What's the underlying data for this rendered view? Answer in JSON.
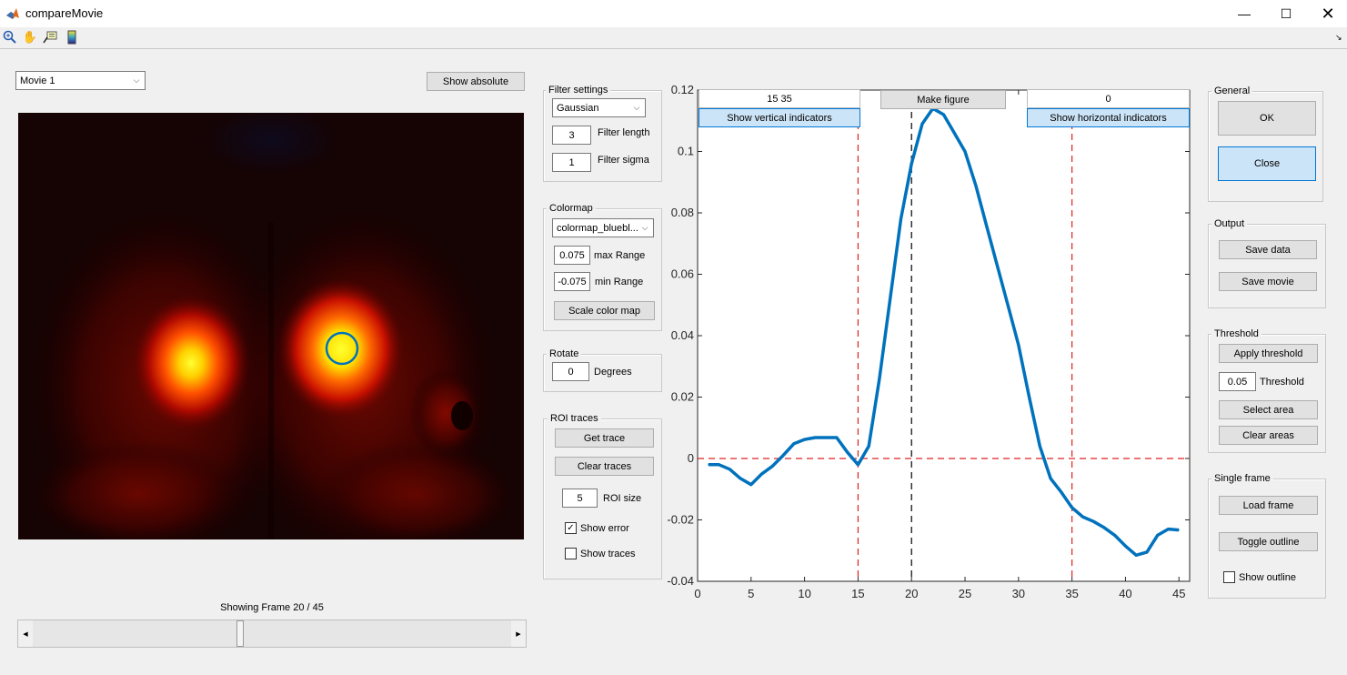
{
  "window": {
    "title": "compareMovie",
    "minimize_icon": "minimize-icon",
    "maximize_icon": "maximize-icon",
    "close_icon": "close-icon"
  },
  "toolbar": {
    "icons": [
      "zoom-in-icon",
      "pan-hand-icon",
      "data-cursor-icon",
      "colorbar-icon"
    ]
  },
  "movie": {
    "selected": "Movie 1",
    "show_absolute_label": "Show absolute",
    "frame_text": "Showing Frame 20 / 45",
    "slider": {
      "current": 20,
      "total": 45
    }
  },
  "filter": {
    "title": "Filter settings",
    "type": "Gaussian",
    "length_value": "3",
    "length_label": "Filter length",
    "sigma_value": "1",
    "sigma_label": "Filter sigma"
  },
  "colormap": {
    "title": "Colormap",
    "selected": "colormap_bluebl...",
    "max_value": "0.075",
    "max_label": "max Range",
    "min_value": "-0.075",
    "min_label": "min Range",
    "scale_label": "Scale color map"
  },
  "rotate": {
    "title": "Rotate",
    "value": "0",
    "label": "Degrees"
  },
  "roi": {
    "title": "ROI traces",
    "get_trace_label": "Get trace",
    "clear_traces_label": "Clear traces",
    "size_value": "5",
    "size_label": "ROI size",
    "show_error_label": "Show error",
    "show_error_checked": true,
    "show_traces_label": "Show traces",
    "show_traces_checked": false
  },
  "plot_controls": {
    "vertical_value": "15 35",
    "vertical_label": "Show vertical indicators",
    "make_figure_label": "Make figure",
    "horizontal_value": "0",
    "horizontal_label": "Show horizontal indicators"
  },
  "general": {
    "title": "General",
    "ok_label": "OK",
    "close_label": "Close"
  },
  "output": {
    "title": "Output",
    "save_data_label": "Save data",
    "save_movie_label": "Save movie"
  },
  "threshold": {
    "title": "Threshold",
    "apply_label": "Apply threshold",
    "value": "0.05",
    "label": "Threshold",
    "select_area_label": "Select area",
    "clear_areas_label": "Clear areas"
  },
  "single_frame": {
    "title": "Single frame",
    "load_label": "Load frame",
    "toggle_label": "Toggle outline",
    "show_outline_label": "Show outline",
    "show_outline_checked": false
  },
  "chart_data": {
    "type": "line",
    "xlim": [
      0,
      46
    ],
    "ylim": [
      -0.04,
      0.12
    ],
    "xticks": [
      0,
      5,
      10,
      15,
      20,
      25,
      30,
      35,
      40,
      45
    ],
    "yticks": [
      -0.04,
      -0.02,
      0,
      0.02,
      0.04,
      0.06,
      0.08,
      0.1,
      0.12
    ],
    "xticklabels": [
      "0",
      "5",
      "10",
      "15",
      "20",
      "25",
      "30",
      "35",
      "40",
      "45"
    ],
    "yticklabels": [
      "-0.04",
      "-0.02",
      "0",
      "0.02",
      "0.04",
      "0.06",
      "0.08",
      "0.1",
      "0.12"
    ],
    "grid": false,
    "series": [
      {
        "color": "#0072bd",
        "x": [
          1,
          2,
          3,
          4,
          5,
          6,
          7,
          8,
          9,
          10,
          11,
          12,
          13,
          14,
          15,
          16,
          17,
          18,
          19,
          20,
          21,
          22,
          23,
          24,
          25,
          26,
          27,
          28,
          29,
          30,
          31,
          32,
          33,
          34,
          35,
          36,
          37,
          38,
          39,
          40,
          41,
          42,
          43,
          44,
          45
        ],
        "y": [
          -0.002,
          -0.002,
          -0.0035,
          -0.0065,
          -0.0085,
          -0.005,
          -0.0025,
          0.001,
          0.0048,
          0.0062,
          0.0068,
          0.0068,
          0.0068,
          0.002,
          -0.002,
          0.004,
          0.026,
          0.052,
          0.078,
          0.096,
          0.109,
          0.114,
          0.112,
          0.106,
          0.1,
          0.089,
          0.076,
          0.063,
          0.05,
          0.037,
          0.02,
          0.004,
          -0.0065,
          -0.011,
          -0.016,
          -0.019,
          -0.0205,
          -0.0225,
          -0.025,
          -0.0285,
          -0.0315,
          -0.0305,
          -0.025,
          -0.023,
          -0.0233
        ]
      }
    ],
    "vertical_indicators": [
      15,
      35
    ],
    "current_frame_line": 20,
    "horizontal_indicators": [
      0
    ],
    "indicator_color": "#e02020",
    "frame_line_color": "#000000"
  },
  "image": {
    "description_icon": "roi-circle-icon",
    "roi_color": "#0072bd"
  }
}
